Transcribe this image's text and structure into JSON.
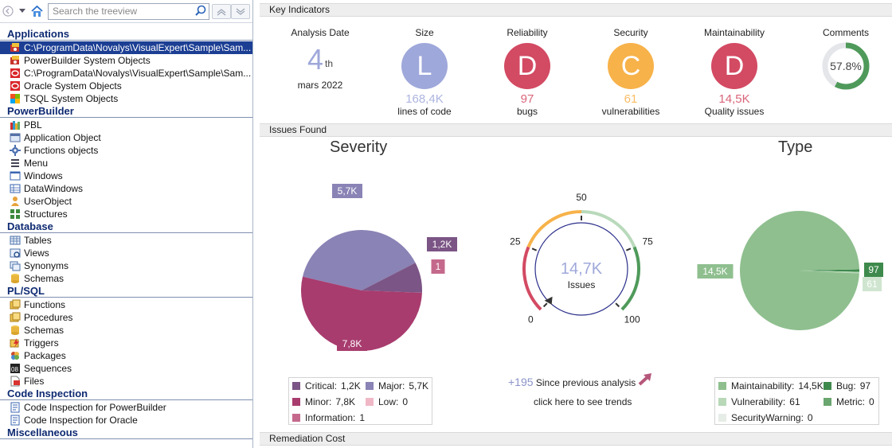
{
  "left_toolbar": {
    "search_placeholder": "Search the treeview"
  },
  "tree": [
    {
      "group": "Applications",
      "items": [
        {
          "label": "C:\\ProgramData\\Novalys\\VisualExpert\\Sample\\Sam...",
          "icon": "pb-app-icon",
          "selected": true
        },
        {
          "label": "PowerBuilder System Objects",
          "icon": "pb-app-icon"
        },
        {
          "label": "C:\\ProgramData\\Novalys\\VisualExpert\\Sample\\Sam...",
          "icon": "oracle-icon"
        },
        {
          "label": "Oracle System Objects",
          "icon": "oracle-icon"
        },
        {
          "label": "TSQL System Objects",
          "icon": "tsql-icon"
        }
      ]
    },
    {
      "group": "PowerBuilder",
      "items": [
        {
          "label": "PBL",
          "icon": "pbl-icon"
        },
        {
          "label": "Application Object",
          "icon": "application-object-icon"
        },
        {
          "label": "Functions objects",
          "icon": "gear-icon"
        },
        {
          "label": "Menu",
          "icon": "menu-icon"
        },
        {
          "label": "Windows",
          "icon": "window-icon"
        },
        {
          "label": "DataWindows",
          "icon": "datawindow-icon"
        },
        {
          "label": "UserObject",
          "icon": "user-object-icon"
        },
        {
          "label": "Structures",
          "icon": "structure-icon"
        }
      ]
    },
    {
      "group": "Database",
      "items": [
        {
          "label": "Tables",
          "icon": "table-icon"
        },
        {
          "label": "Views",
          "icon": "view-icon"
        },
        {
          "label": "Synonyms",
          "icon": "synonym-icon"
        },
        {
          "label": "Schemas",
          "icon": "schema-icon"
        }
      ]
    },
    {
      "group": "PL/SQL",
      "items": [
        {
          "label": "Functions",
          "icon": "function-icon"
        },
        {
          "label": "Procedures",
          "icon": "procedure-icon"
        },
        {
          "label": "Schemas",
          "icon": "schema-icon"
        },
        {
          "label": "Triggers",
          "icon": "trigger-icon"
        },
        {
          "label": "Packages",
          "icon": "package-icon"
        },
        {
          "label": "Sequences",
          "icon": "sequence-icon"
        },
        {
          "label": "Files",
          "icon": "file-icon"
        }
      ]
    },
    {
      "group": "Code Inspection",
      "items": [
        {
          "label": "Code Inspection for PowerBuilder",
          "icon": "inspection-icon"
        },
        {
          "label": "Code Inspection for Oracle",
          "icon": "inspection-icon"
        }
      ]
    },
    {
      "group": "Miscellaneous",
      "items": []
    }
  ],
  "key_indicators": {
    "section_title": "Key Indicators",
    "analysis_date": {
      "title": "Analysis Date",
      "day": "4",
      "suffix": "th",
      "month_year": "mars 2022"
    },
    "size": {
      "title": "Size",
      "grade": "L",
      "value": "168,4K",
      "sub": "lines of code",
      "color": "#9fa8da"
    },
    "reliability": {
      "title": "Reliability",
      "grade": "D",
      "value": "97",
      "sub": "bugs",
      "color": "#d34a63"
    },
    "security": {
      "title": "Security",
      "grade": "C",
      "value": "61",
      "sub": "vulnerabilities",
      "color": "#f7b24a"
    },
    "maintainability": {
      "title": "Maintainability",
      "grade": "D",
      "value": "14,5K",
      "sub": "Quality issues",
      "color": "#d34a63"
    },
    "comments": {
      "title": "Comments",
      "value": "57.8%",
      "fraction": 0.578,
      "color": "#4f9a5a"
    }
  },
  "issues_found": {
    "section_title": "Issues Found",
    "severity_title": "Severity",
    "type_title": "Type",
    "gauge": {
      "value": "14,7K",
      "label": "Issues",
      "ticks": [
        "0",
        "25",
        "50",
        "75",
        "100"
      ]
    },
    "trend": {
      "delta": "+195",
      "text": "Since previous analysis",
      "link": "click here to see trends"
    },
    "severity_legend": [
      {
        "label": "Critical:",
        "value": "1,2K",
        "color": "#7b5585"
      },
      {
        "label": "Major:",
        "value": "5,7K",
        "color": "#8a83b5"
      },
      {
        "label": "Minor:",
        "value": "7,8K",
        "color": "#a83c6e"
      },
      {
        "label": "Low:",
        "value": "0",
        "color": "#f0b8c6"
      },
      {
        "label": "Information:",
        "value": "1",
        "color": "#c4698b"
      }
    ],
    "type_legend": [
      {
        "label": "Maintainability:",
        "value": "14,5K",
        "color": "#8fbf8f"
      },
      {
        "label": "Bug:",
        "value": "97",
        "color": "#3e8a4d"
      },
      {
        "label": "Vulnerability:",
        "value": "61",
        "color": "#b8d8b8"
      },
      {
        "label": "Metric:",
        "value": "0",
        "color": "#6aa66f"
      },
      {
        "label": "SecurityWarning:",
        "value": "0",
        "color": "#e6ece6"
      }
    ]
  },
  "remediation": {
    "section_title": "Remediation Cost"
  },
  "chart_data": [
    {
      "type": "pie",
      "title": "Severity",
      "categories": [
        "Critical",
        "Major",
        "Minor",
        "Low",
        "Information"
      ],
      "values": [
        1200,
        5700,
        7800,
        0,
        1
      ],
      "data_labels": [
        "1,2K",
        "5,7K",
        "7,8K",
        "",
        "1"
      ]
    },
    {
      "type": "pie",
      "title": "Type",
      "categories": [
        "Maintainability",
        "Bug",
        "Vulnerability",
        "Metric",
        "SecurityWarning"
      ],
      "values": [
        14500,
        97,
        61,
        0,
        0
      ],
      "data_labels": [
        "14,5K",
        "97",
        "61",
        "",
        ""
      ]
    }
  ]
}
